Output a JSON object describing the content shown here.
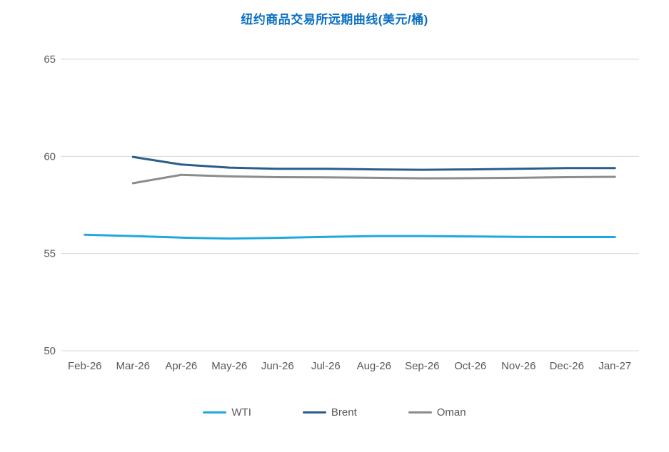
{
  "title": "纽约商品交易所远期曲线(美元/桶)",
  "ui_colors": {
    "title_blue": "#0b6fc2",
    "gridline_gray": "#d9d9d9",
    "axis_text_gray": "#595959",
    "background": "#ffffff"
  },
  "chart_data": {
    "type": "line",
    "title": "纽约商品交易所远期曲线(美元/桶)",
    "categories": [
      "Feb-26",
      "Mar-26",
      "Apr-26",
      "May-26",
      "Jun-26",
      "Jul-26",
      "Aug-26",
      "Sep-26",
      "Oct-26",
      "Nov-26",
      "Dec-26",
      "Jan-27"
    ],
    "xlabel": "",
    "ylabel": "",
    "ylim": [
      50,
      65
    ],
    "y_ticks": [
      65,
      60,
      55,
      50
    ],
    "grid": "horizontal",
    "legend_position": "bottom",
    "series": [
      {
        "name": "WTI",
        "color": "#1fa8e0",
        "values": [
          55.97,
          55.9,
          55.82,
          55.77,
          55.81,
          55.86,
          55.9,
          55.9,
          55.88,
          55.86,
          55.85,
          55.85
        ]
      },
      {
        "name": "Brent",
        "color": "#2b5c8a",
        "values": [
          null,
          59.97,
          59.58,
          59.42,
          59.36,
          59.36,
          59.33,
          59.31,
          59.33,
          59.36,
          59.4,
          59.4
        ]
      },
      {
        "name": "Oman",
        "color": "#8c8c8c",
        "values": [
          null,
          58.62,
          59.05,
          58.97,
          58.93,
          58.92,
          58.9,
          58.87,
          58.88,
          58.9,
          58.93,
          58.95
        ]
      }
    ]
  }
}
